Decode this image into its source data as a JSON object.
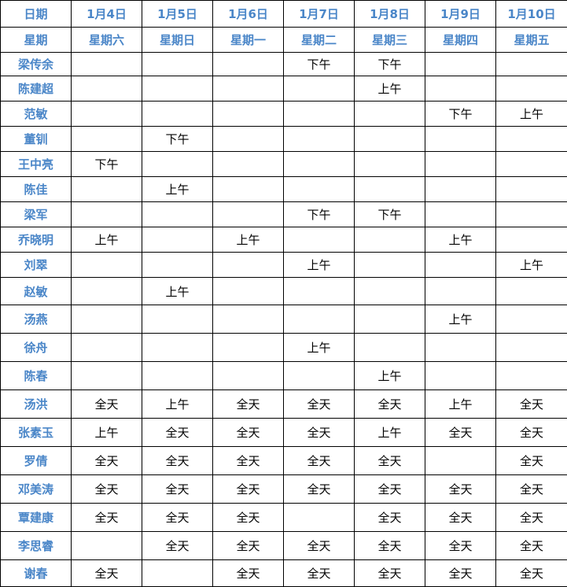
{
  "header": {
    "date_label": "日期",
    "dates": [
      "1月4日",
      "1月5日",
      "1月6日",
      "1月7日",
      "1月8日",
      "1月9日",
      "1月10日"
    ],
    "weekday_label": "星期",
    "weekdays": [
      "星期六",
      "星期日",
      "星期一",
      "星期二",
      "星期三",
      "星期四",
      "星期五"
    ]
  },
  "colors": {
    "header_text": "#4a86c8",
    "cell_text": "#000000",
    "grid": "#000000"
  },
  "rows": [
    {
      "name": "梁传余",
      "cells": [
        "",
        "",
        "",
        "下午",
        "下午",
        "",
        ""
      ]
    },
    {
      "name": "陈建超",
      "cells": [
        "",
        "",
        "",
        "",
        "上午",
        "",
        ""
      ]
    },
    {
      "name": "范敏",
      "cells": [
        "",
        "",
        "",
        "",
        "",
        "下午",
        "上午"
      ]
    },
    {
      "name": "董钏",
      "cells": [
        "",
        "下午",
        "",
        "",
        "",
        "",
        ""
      ]
    },
    {
      "name": "王中亮",
      "cells": [
        "下午",
        "",
        "",
        "",
        "",
        "",
        ""
      ]
    },
    {
      "name": "陈佳",
      "cells": [
        "",
        "上午",
        "",
        "",
        "",
        "",
        ""
      ]
    },
    {
      "name": "梁军",
      "cells": [
        "",
        "",
        "",
        "下午",
        "下午",
        "",
        ""
      ]
    },
    {
      "name": "乔晓明",
      "cells": [
        "上午",
        "",
        "上午",
        "",
        "",
        "上午",
        ""
      ]
    },
    {
      "name": "刘翠",
      "cells": [
        "",
        "",
        "",
        "上午",
        "",
        "",
        "上午"
      ]
    },
    {
      "name": "赵敏",
      "cells": [
        "",
        "上午",
        "",
        "",
        "",
        "",
        ""
      ]
    },
    {
      "name": "汤燕",
      "cells": [
        "",
        "",
        "",
        "",
        "",
        "上午",
        ""
      ]
    },
    {
      "name": "徐舟",
      "cells": [
        "",
        "",
        "",
        "上午",
        "",
        "",
        ""
      ]
    },
    {
      "name": "陈春",
      "cells": [
        "",
        "",
        "",
        "",
        "上午",
        "",
        ""
      ]
    },
    {
      "name": "汤洪",
      "cells": [
        "全天",
        "上午",
        "全天",
        "全天",
        "全天",
        "上午",
        "全天"
      ]
    },
    {
      "name": "张素玉",
      "cells": [
        "上午",
        "全天",
        "全天",
        "全天",
        "上午",
        "全天",
        "全天"
      ]
    },
    {
      "name": "罗倩",
      "cells": [
        "全天",
        "全天",
        "全天",
        "全天",
        "全天",
        "",
        "全天"
      ]
    },
    {
      "name": "邓美涛",
      "cells": [
        "全天",
        "全天",
        "全天",
        "全天",
        "全天",
        "全天",
        "全天"
      ]
    },
    {
      "name": "覃建康",
      "cells": [
        "全天",
        "全天",
        "全天",
        "",
        "全天",
        "全天",
        "全天"
      ]
    },
    {
      "name": "李思睿",
      "cells": [
        "",
        "全天",
        "全天",
        "全天",
        "全天",
        "全天",
        "全天"
      ]
    },
    {
      "name": "谢春",
      "cells": [
        "全天",
        "",
        "全天",
        "全天",
        "全天",
        "全天",
        "全天"
      ]
    }
  ]
}
